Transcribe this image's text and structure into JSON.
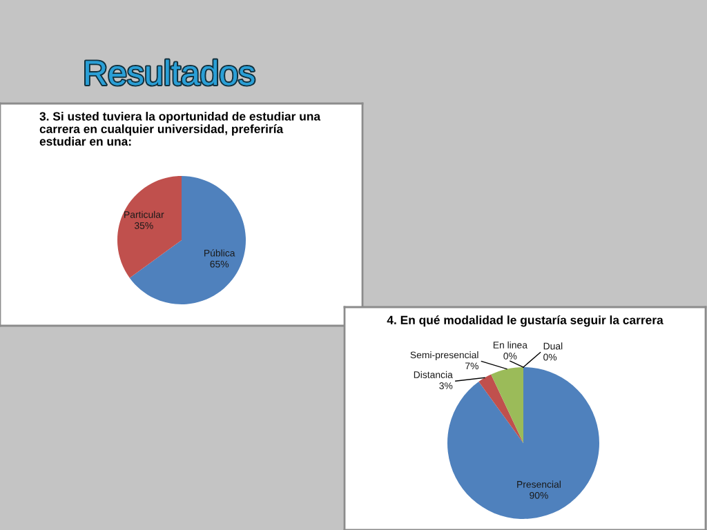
{
  "chart_data": [
    {
      "type": "pie",
      "title": "3. Si usted tuviera la oportunidad de estudiar una carrera en cualquier universidad, preferiría estudiar en una:",
      "annotations": [
        "Resultados"
      ],
      "categories": [
        "Pública",
        "Particular"
      ],
      "values": [
        65,
        35
      ],
      "colors": [
        "#4f81bd",
        "#c0504d"
      ],
      "value_labels": [
        "65%",
        "35%"
      ]
    },
    {
      "type": "pie",
      "title": "4. En qué modalidad le gustaría seguir la carrera",
      "categories": [
        "Presencial",
        "Distancia",
        "Semi-presencial",
        "En linea",
        "Dual"
      ],
      "values": [
        90,
        3,
        7,
        0,
        0
      ],
      "colors": [
        "#4f81bd",
        "#c0504d",
        "#9bbb59",
        "#8064a2",
        "#4bacc6"
      ],
      "value_labels": [
        "90%",
        "3%",
        "7%",
        "0%",
        "0%"
      ]
    }
  ]
}
